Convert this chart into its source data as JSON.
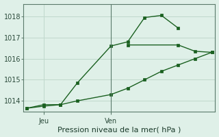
{
  "background_color": "#dff0e8",
  "grid_color": "#c0d8cc",
  "line_color": "#1a6020",
  "title": "Pression niveau de la mer( hPa )",
  "xlabel_day_labels": [
    "Jeu",
    "Ven"
  ],
  "xlabel_day_positions": [
    1,
    5
  ],
  "ylim": [
    1013.5,
    1018.6
  ],
  "yticks": [
    1014,
    1015,
    1016,
    1017,
    1018
  ],
  "xlim": [
    -0.2,
    11.2
  ],
  "series1_x": [
    0,
    1,
    2,
    3,
    5,
    6,
    7,
    8,
    9
  ],
  "series1_y": [
    1013.65,
    1013.82,
    1013.82,
    1014.85,
    1016.6,
    1016.8,
    1017.95,
    1018.05,
    1017.45
  ],
  "series2_x": [
    0,
    1,
    2,
    3,
    5,
    6,
    7,
    8,
    9,
    10,
    11
  ],
  "series2_y": [
    1013.65,
    1013.75,
    1013.82,
    1014.0,
    1014.3,
    1014.6,
    1015.0,
    1015.4,
    1015.7,
    1016.0,
    1016.3
  ],
  "series3_x": [
    6,
    9,
    10,
    11
  ],
  "series3_y": [
    1016.65,
    1016.65,
    1016.35,
    1016.3
  ],
  "vline_x": 5,
  "vline_color": "#5a7a6a",
  "marker_size": 2.5,
  "line_width": 1.0,
  "tick_fontsize": 7,
  "xlabel_fontsize": 8
}
